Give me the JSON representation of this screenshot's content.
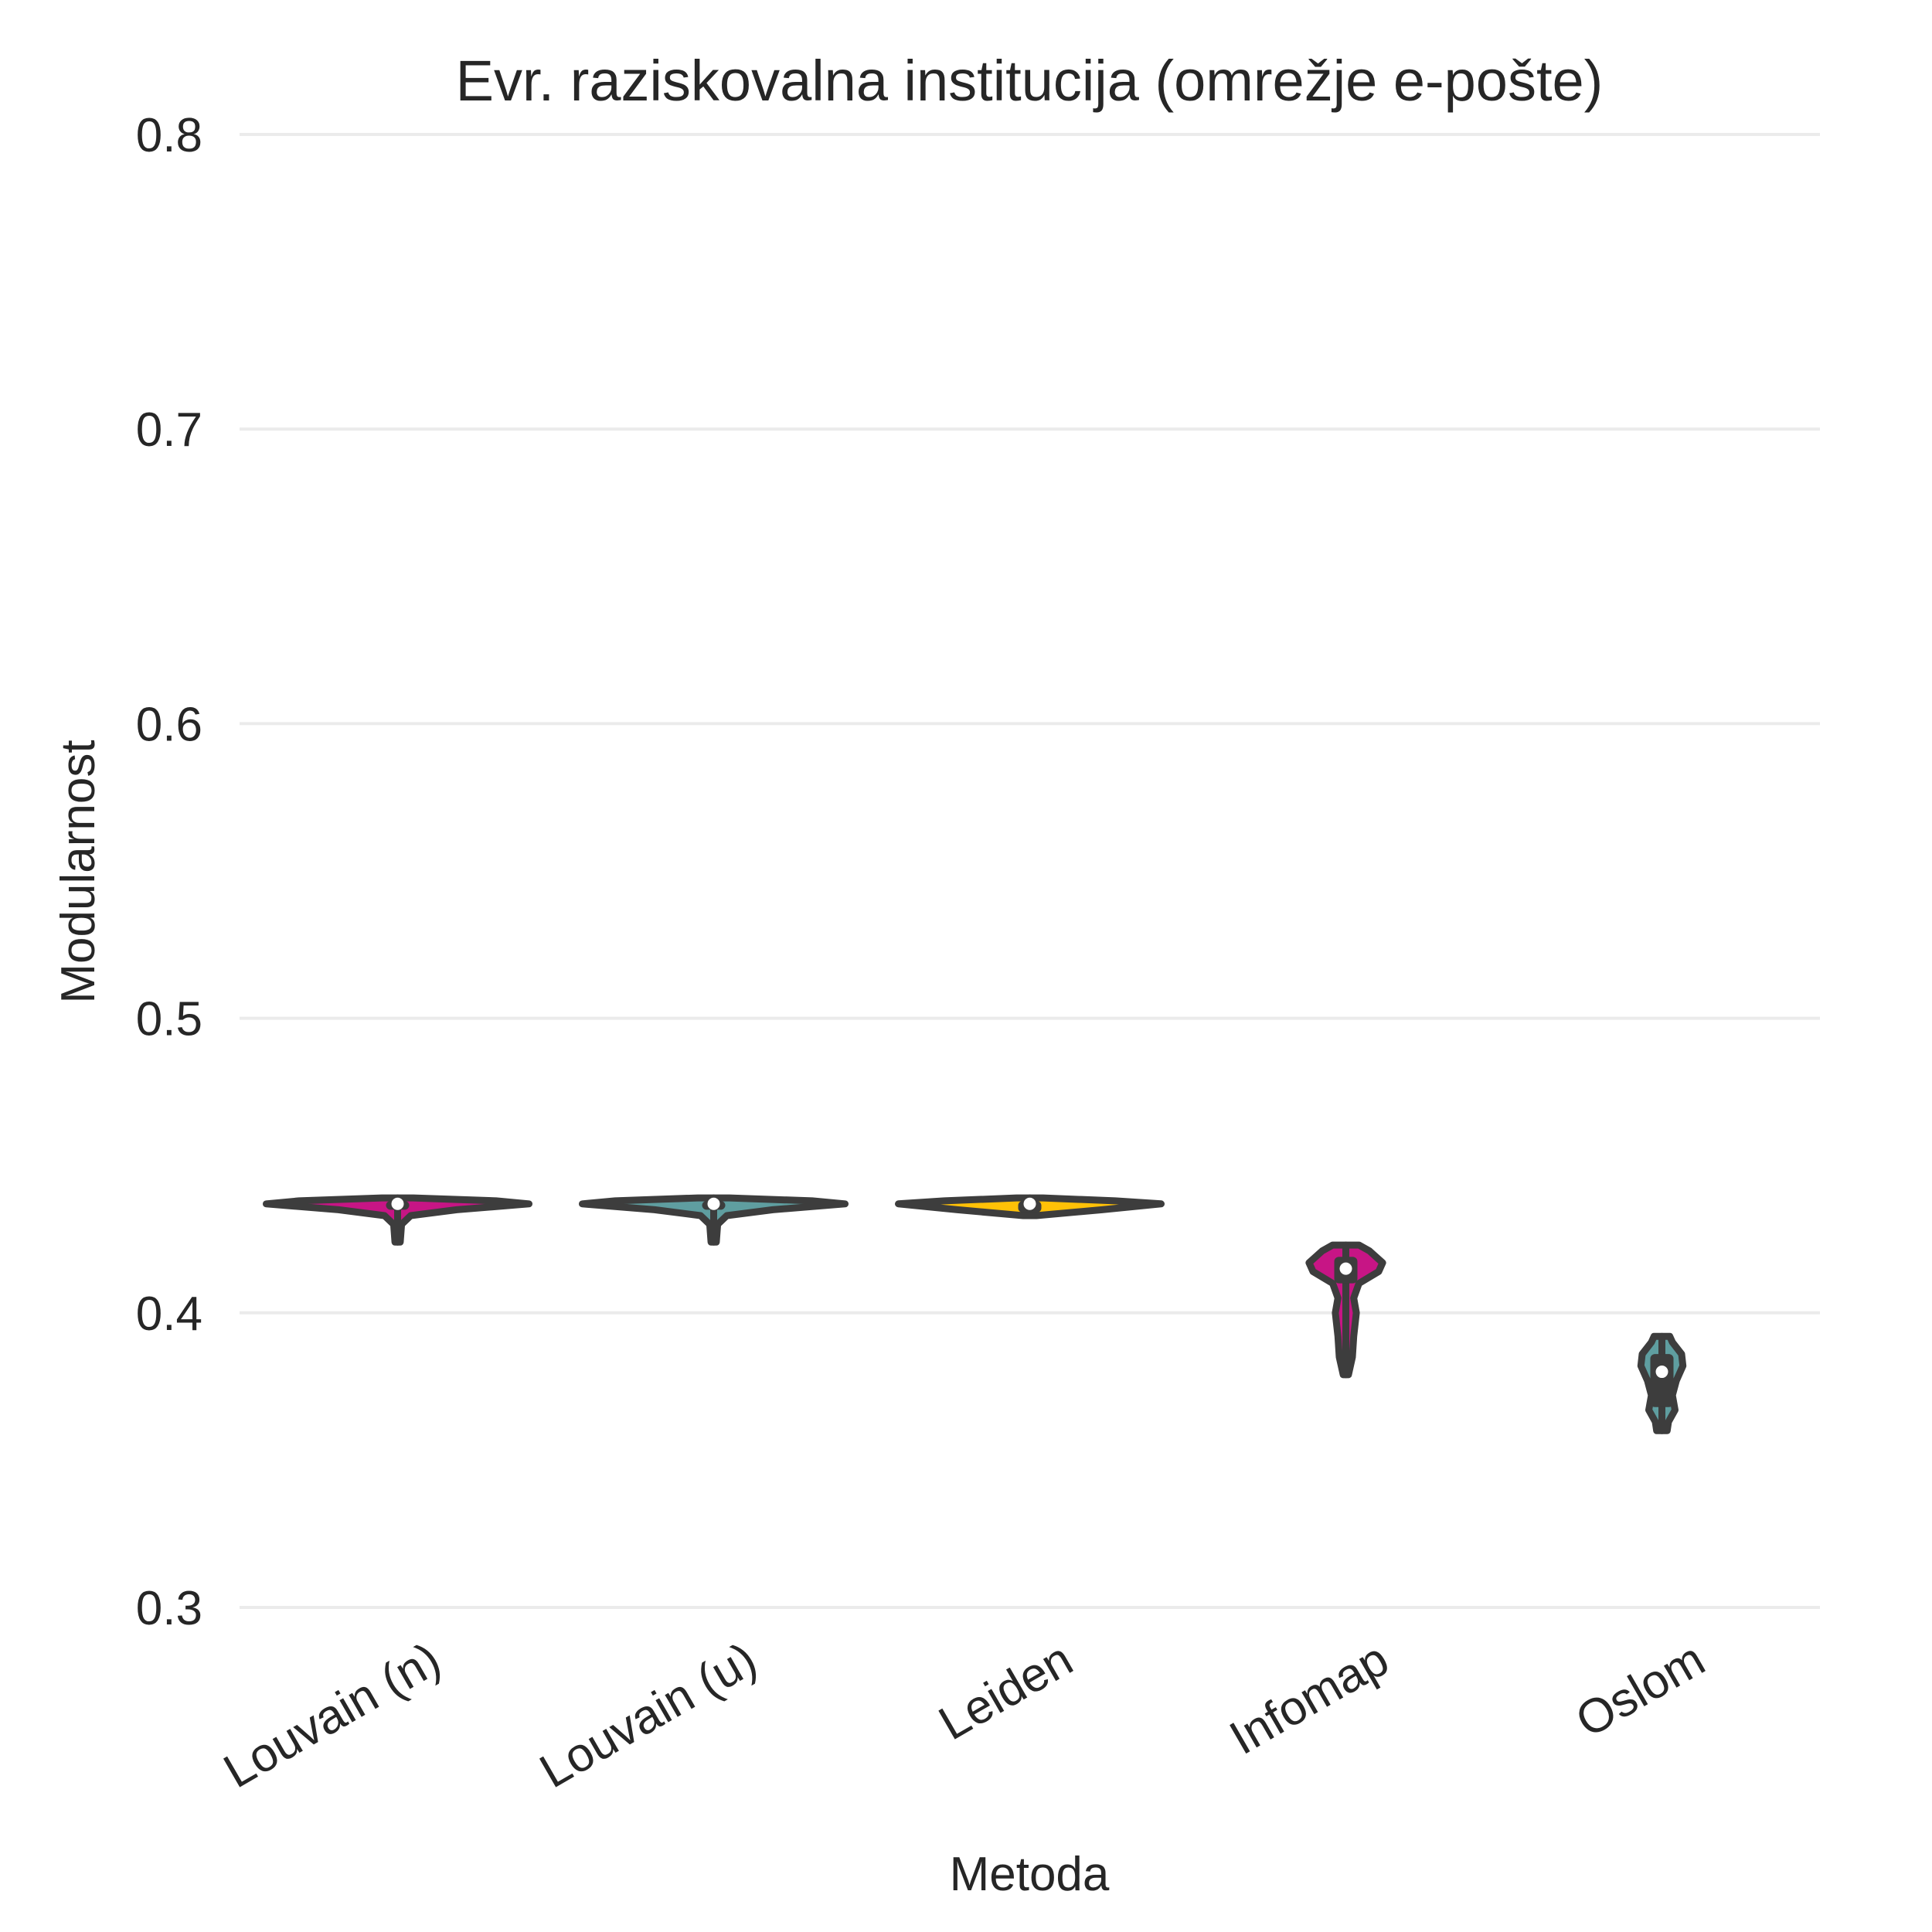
{
  "chart_data": {
    "type": "violin",
    "title": "Evr. raziskovalna institucija  (omrežje e-pošte)",
    "xlabel": "Metoda",
    "ylabel": "Modularnost",
    "ylim": [
      0.3,
      0.8
    ],
    "yticks": [
      "0.3",
      "0.4",
      "0.5",
      "0.6",
      "0.7",
      "0.8"
    ],
    "grid": true,
    "categories": [
      "Louvain (n)",
      "Louvain (u)",
      "Leiden",
      "Infomap",
      "Oslom"
    ],
    "series": [
      {
        "category": "Louvain (n)",
        "color": "#c71585",
        "median": 0.437,
        "q1": 0.435,
        "q3": 0.438,
        "min": 0.424,
        "max": 0.439,
        "density": [
          [
            0.424,
            0.02
          ],
          [
            0.43,
            0.03
          ],
          [
            0.433,
            0.1
          ],
          [
            0.435,
            0.45
          ],
          [
            0.437,
            1.0
          ],
          [
            0.438,
            0.75
          ],
          [
            0.439,
            0.12
          ]
        ]
      },
      {
        "category": "Louvain (u)",
        "color": "#5f9ea0",
        "median": 0.437,
        "q1": 0.435,
        "q3": 0.438,
        "min": 0.424,
        "max": 0.439,
        "density": [
          [
            0.424,
            0.02
          ],
          [
            0.43,
            0.03
          ],
          [
            0.433,
            0.1
          ],
          [
            0.435,
            0.45
          ],
          [
            0.437,
            1.0
          ],
          [
            0.438,
            0.75
          ],
          [
            0.439,
            0.12
          ]
        ]
      },
      {
        "category": "Leiden",
        "color": "#ffc107",
        "median": 0.437,
        "q1": 0.434,
        "q3": 0.438,
        "min": 0.433,
        "max": 0.439,
        "density": [
          [
            0.433,
            0.05
          ],
          [
            0.435,
            0.55
          ],
          [
            0.437,
            1.0
          ],
          [
            0.438,
            0.65
          ],
          [
            0.439,
            0.1
          ]
        ]
      },
      {
        "category": "Infomap",
        "color": "#c71585",
        "median": 0.415,
        "q1": 0.41,
        "q3": 0.419,
        "min": 0.379,
        "max": 0.423,
        "density": [
          [
            0.379,
            0.02
          ],
          [
            0.385,
            0.05
          ],
          [
            0.392,
            0.06
          ],
          [
            0.4,
            0.08
          ],
          [
            0.405,
            0.06
          ],
          [
            0.41,
            0.1
          ],
          [
            0.414,
            0.25
          ],
          [
            0.417,
            0.28
          ],
          [
            0.421,
            0.18
          ],
          [
            0.423,
            0.1
          ]
        ]
      },
      {
        "category": "Oslom",
        "color": "#5f9ea0",
        "median": 0.38,
        "q1": 0.368,
        "q3": 0.386,
        "min": 0.36,
        "max": 0.392,
        "density": [
          [
            0.36,
            0.04
          ],
          [
            0.363,
            0.05
          ],
          [
            0.367,
            0.1
          ],
          [
            0.372,
            0.08
          ],
          [
            0.377,
            0.11
          ],
          [
            0.382,
            0.16
          ],
          [
            0.386,
            0.15
          ],
          [
            0.39,
            0.08
          ],
          [
            0.392,
            0.06
          ]
        ]
      }
    ]
  }
}
